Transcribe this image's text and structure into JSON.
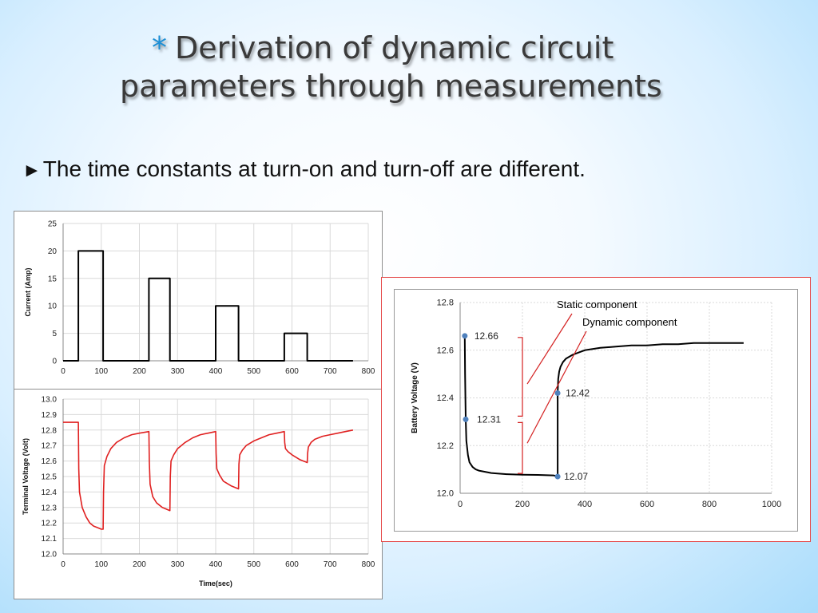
{
  "slide": {
    "star": "*",
    "title_line1": "Derivation of dynamic circuit",
    "title_line2": "parameters through measurements",
    "bullet_arrow": "►",
    "bullet_text": "The time constants at turn-on and turn-off are different."
  },
  "colors": {
    "current_line": "#000000",
    "voltage_line": "#e02020",
    "battery_line": "#000000",
    "marker": "#4f81bd",
    "annotation": "#d42020",
    "grid": "#d9d9d9",
    "highlight_border": "#e54b4b"
  },
  "chart_data": [
    {
      "type": "line",
      "title": "",
      "xlabel": "",
      "ylabel": "Current (Amp)",
      "xlim": [
        0,
        800
      ],
      "ylim": [
        0,
        25
      ],
      "xticks": [
        0,
        100,
        200,
        300,
        400,
        500,
        600,
        700,
        800
      ],
      "yticks": [
        0,
        5,
        10,
        15,
        20,
        25
      ],
      "grid": true,
      "series": [
        {
          "x": [
            0,
            40,
            40,
            105,
            105,
            225,
            225,
            280,
            280,
            400,
            400,
            460,
            460,
            580,
            580,
            640,
            640,
            760
          ],
          "y": [
            0,
            0,
            20,
            20,
            0,
            0,
            15,
            15,
            0,
            0,
            10,
            10,
            0,
            0,
            5,
            5,
            0,
            0
          ]
        }
      ]
    },
    {
      "type": "line",
      "title": "",
      "xlabel": "Time(sec)",
      "ylabel": "Terminal Voltage (Volt)",
      "xlim": [
        0,
        800
      ],
      "ylim": [
        12,
        13
      ],
      "xticks": [
        0,
        100,
        200,
        300,
        400,
        500,
        600,
        700,
        800
      ],
      "yticks": [
        12,
        12.1,
        12.2,
        12.3,
        12.4,
        12.5,
        12.6,
        12.7,
        12.8,
        12.9,
        13
      ],
      "grid": true,
      "series": [
        {
          "x": [
            0,
            40,
            41,
            43,
            50,
            60,
            70,
            80,
            90,
            100,
            105,
            106,
            108,
            115,
            125,
            140,
            160,
            180,
            200,
            225,
            226,
            228,
            235,
            245,
            260,
            280,
            281,
            283,
            290,
            300,
            320,
            340,
            360,
            380,
            400,
            401,
            403,
            410,
            420,
            440,
            460,
            461,
            463,
            470,
            480,
            500,
            520,
            540,
            560,
            580,
            581,
            583,
            590,
            600,
            620,
            640,
            641,
            643,
            650,
            660,
            680,
            700,
            720,
            740,
            760
          ],
          "y": [
            12.85,
            12.85,
            12.55,
            12.4,
            12.3,
            12.24,
            12.2,
            12.18,
            12.17,
            12.16,
            12.16,
            12.4,
            12.57,
            12.63,
            12.68,
            12.72,
            12.75,
            12.77,
            12.78,
            12.79,
            12.6,
            12.45,
            12.37,
            12.33,
            12.3,
            12.28,
            12.5,
            12.6,
            12.64,
            12.68,
            12.72,
            12.75,
            12.77,
            12.78,
            12.79,
            12.65,
            12.55,
            12.51,
            12.47,
            12.44,
            12.42,
            12.58,
            12.64,
            12.67,
            12.7,
            12.73,
            12.75,
            12.77,
            12.78,
            12.79,
            12.72,
            12.68,
            12.66,
            12.64,
            12.61,
            12.59,
            12.65,
            12.69,
            12.72,
            12.74,
            12.76,
            12.77,
            12.78,
            12.79,
            12.8
          ]
        }
      ]
    },
    {
      "type": "line",
      "title": "",
      "xlabel": "",
      "ylabel": "Battery Voltage (V)",
      "xlim": [
        0,
        1000
      ],
      "ylim": [
        12,
        12.8
      ],
      "xticks": [
        0,
        200,
        400,
        600,
        800,
        1000
      ],
      "yticks": [
        12,
        12.2,
        12.4,
        12.6,
        12.8
      ],
      "grid": true,
      "series": [
        {
          "x": [
            15,
            15,
            16,
            18,
            20,
            25,
            30,
            40,
            50,
            60,
            80,
            100,
            120,
            150,
            200,
            250,
            300,
            313,
            313,
            315,
            318,
            322,
            330,
            340,
            360,
            380,
            400,
            450,
            500,
            550,
            600,
            650,
            700,
            750,
            800,
            850,
            910
          ],
          "y": [
            12.66,
            12.66,
            12.5,
            12.31,
            12.22,
            12.16,
            12.13,
            12.11,
            12.1,
            12.095,
            12.09,
            12.085,
            12.083,
            12.08,
            12.078,
            12.077,
            12.075,
            12.07,
            12.42,
            12.48,
            12.51,
            12.53,
            12.55,
            12.565,
            12.58,
            12.59,
            12.6,
            12.61,
            12.615,
            12.62,
            12.62,
            12.625,
            12.625,
            12.63,
            12.63,
            12.63,
            12.63
          ]
        }
      ],
      "markers": [
        {
          "x": 15,
          "y": 12.66,
          "label": "12.66"
        },
        {
          "x": 18,
          "y": 12.31,
          "label": "12.31"
        },
        {
          "x": 313,
          "y": 12.42,
          "label": "12.42"
        },
        {
          "x": 313,
          "y": 12.07,
          "label": "12.07"
        }
      ],
      "annotations": {
        "static": "Static component",
        "dynamic": "Dynamic component"
      }
    }
  ]
}
